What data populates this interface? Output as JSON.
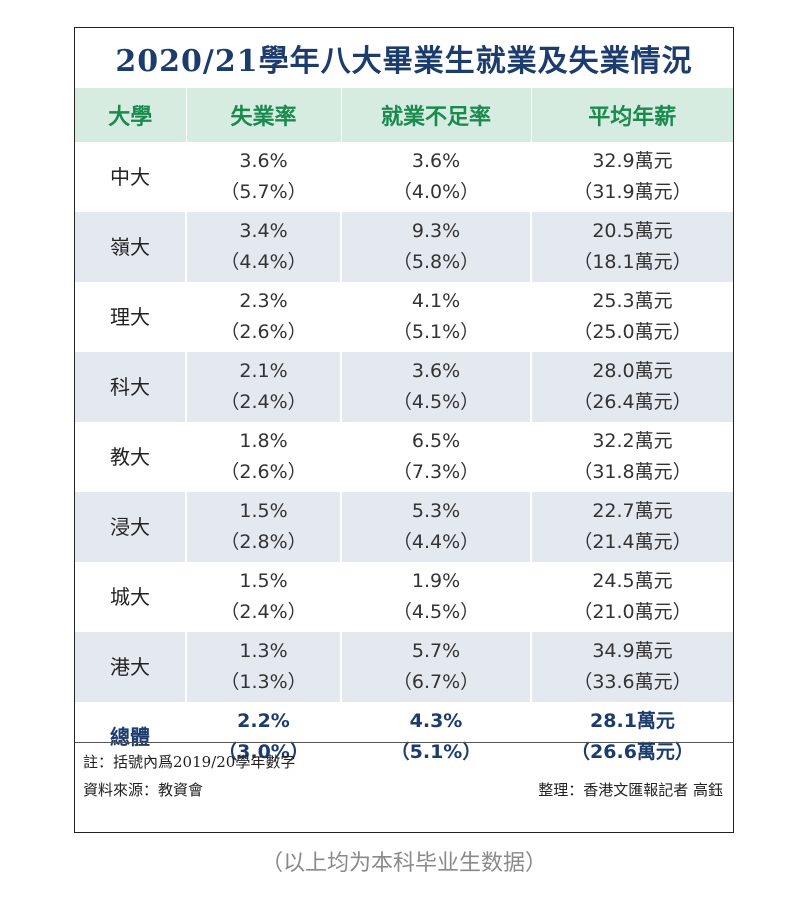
{
  "title": "2020/21學年八大畢業生就業及失業情況",
  "headers": [
    "大學",
    "失業率",
    "就業不足率",
    "平均年薪"
  ],
  "rows": [
    {
      "university": "中大",
      "unemployment": "3.6%",
      "unemployment_prev": "（5.7%）",
      "underemployment": "3.6%",
      "underemployment_prev": "（4.0%）",
      "salary": "32.9萬元",
      "salary_prev": "（31.9萬元）"
    },
    {
      "university": "嶺大",
      "unemployment": "3.4%",
      "unemployment_prev": "（4.4%）",
      "underemployment": "9.3%",
      "underemployment_prev": "（5.8%）",
      "salary": "20.5萬元",
      "salary_prev": "（18.1萬元）"
    },
    {
      "university": "理大",
      "unemployment": "2.3%",
      "unemployment_prev": "（2.6%）",
      "underemployment": "4.1%",
      "underemployment_prev": "（5.1%）",
      "salary": "25.3萬元",
      "salary_prev": "（25.0萬元）"
    },
    {
      "university": "科大",
      "unemployment": "2.1%",
      "unemployment_prev": "（2.4%）",
      "underemployment": "3.6%",
      "underemployment_prev": "（4.5%）",
      "salary": "28.0萬元",
      "salary_prev": "（26.4萬元）"
    },
    {
      "university": "教大",
      "unemployment": "1.8%",
      "unemployment_prev": "（2.6%）",
      "underemployment": "6.5%",
      "underemployment_prev": "（7.3%）",
      "salary": "32.2萬元",
      "salary_prev": "（31.8萬元）"
    },
    {
      "university": "浸大",
      "unemployment": "1.5%",
      "unemployment_prev": "（2.8%）",
      "underemployment": "5.3%",
      "underemployment_prev": "（4.4%）",
      "salary": "22.7萬元",
      "salary_prev": "（21.4萬元）"
    },
    {
      "university": "城大",
      "unemployment": "1.5%",
      "unemployment_prev": "（2.4%）",
      "underemployment": "1.9%",
      "underemployment_prev": "（4.5%）",
      "salary": "24.5萬元",
      "salary_prev": "（21.0萬元）"
    },
    {
      "university": "港大",
      "unemployment": "1.3%",
      "unemployment_prev": "（1.3%）",
      "underemployment": "5.7%",
      "underemployment_prev": "（6.7%）",
      "salary": "34.9萬元",
      "salary_prev": "（33.6萬元）"
    }
  ],
  "total": {
    "university": "總體",
    "unemployment": "2.2%",
    "unemployment_prev": "（3.0%）",
    "underemployment": "4.3%",
    "underemployment_prev": "（5.1%）",
    "salary": "28.1萬元",
    "salary_prev": "（26.6萬元）"
  },
  "footer": {
    "note": "註：括號內爲2019/20學年數字",
    "source": "資料來源：教資會",
    "credit": "整理：香港文匯報記者 高鈺"
  },
  "caption": "（以上均为本科毕业生数据）",
  "colors": {
    "title": "#1d3c6e",
    "header_text": "#1a8a4e",
    "header_bg": "#d6ece1",
    "stripe_bg": "#e4e8ef"
  }
}
